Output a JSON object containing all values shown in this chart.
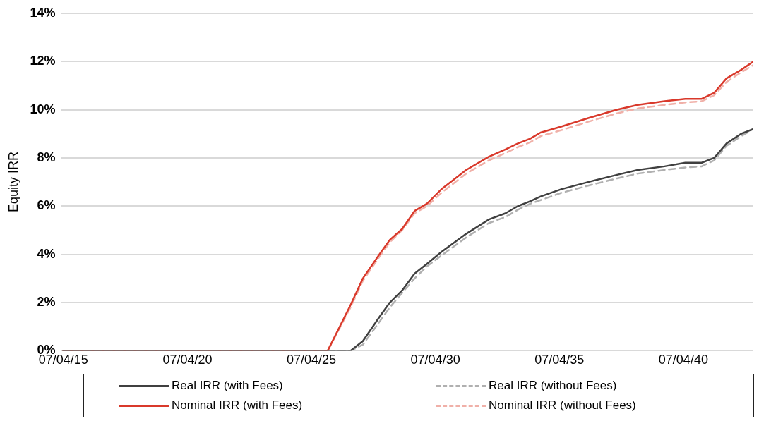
{
  "chart_data": {
    "type": "line",
    "ylabel": "Equity IRR",
    "grid": "y",
    "legend": "bottom",
    "marker": "none",
    "x": [
      "2015-07",
      "2026-03",
      "2027-02",
      "2027-08",
      "2028-04",
      "2028-09",
      "2029-03",
      "2029-09",
      "2030-03",
      "2030-10",
      "2031-10",
      "2032-09",
      "2033-05",
      "2033-11",
      "2034-05",
      "2034-10",
      "2035-08",
      "2036-09",
      "2037-11",
      "2038-09",
      "2039-10",
      "2040-08",
      "2041-04",
      "2041-10",
      "2042-04",
      "2042-11",
      "2043-05"
    ],
    "xlim": [
      "2015-06",
      "2043-05"
    ],
    "xticks": [
      {
        "value": "2015-07-04",
        "label": "07/04/15"
      },
      {
        "value": "2020-07-04",
        "label": "07/04/20"
      },
      {
        "value": "2025-07-04",
        "label": "07/04/25"
      },
      {
        "value": "2030-07-04",
        "label": "07/04/30"
      },
      {
        "value": "2035-07-04",
        "label": "07/04/35"
      },
      {
        "value": "2040-07-04",
        "label": "07/04/40"
      }
    ],
    "ylim": [
      0,
      14
    ],
    "yticks": [
      {
        "value": 0,
        "label": "0%"
      },
      {
        "value": 2,
        "label": "2%"
      },
      {
        "value": 4,
        "label": "4%"
      },
      {
        "value": 6,
        "label": "6%"
      },
      {
        "value": 8,
        "label": "8%"
      },
      {
        "value": 10,
        "label": "10%"
      },
      {
        "value": 12,
        "label": "12%"
      },
      {
        "value": 14,
        "label": "14%"
      }
    ],
    "series": [
      {
        "name": "Real IRR (with Fees)",
        "color": "#404040",
        "line_style": "solid",
        "values": [
          0,
          0,
          0,
          0.4,
          1.4,
          2.0,
          2.5,
          3.2,
          3.6,
          4.1,
          4.85,
          5.45,
          5.7,
          6.0,
          6.2,
          6.4,
          6.7,
          7.0,
          7.3,
          7.5,
          7.65,
          7.8,
          7.8,
          8.0,
          8.6,
          9.0,
          9.2
        ]
      },
      {
        "name": "Real IRR (without Fees)",
        "color": "#b0b0b0",
        "line_style": "dashed",
        "values": [
          0,
          0,
          0,
          0.25,
          1.2,
          1.8,
          2.4,
          3.0,
          3.5,
          3.95,
          4.7,
          5.3,
          5.55,
          5.85,
          6.1,
          6.25,
          6.55,
          6.85,
          7.15,
          7.35,
          7.5,
          7.6,
          7.65,
          7.9,
          8.5,
          8.9,
          9.2
        ]
      },
      {
        "name": "Nominal IRR (with Fees)",
        "color": "#d9392b",
        "line_style": "solid",
        "values": [
          0,
          0,
          1.9,
          3.0,
          4.0,
          4.6,
          5.05,
          5.8,
          6.1,
          6.7,
          7.5,
          8.05,
          8.35,
          8.6,
          8.8,
          9.05,
          9.3,
          9.65,
          10.0,
          10.2,
          10.35,
          10.45,
          10.45,
          10.7,
          11.3,
          11.65,
          12.0
        ]
      },
      {
        "name": "Nominal IRR (without Fees)",
        "color": "#f0b0a8",
        "line_style": "dashed",
        "values": [
          0,
          0,
          1.8,
          2.9,
          3.9,
          4.5,
          5.0,
          5.7,
          6.0,
          6.55,
          7.35,
          7.9,
          8.2,
          8.45,
          8.65,
          8.9,
          9.15,
          9.5,
          9.85,
          10.05,
          10.2,
          10.3,
          10.35,
          10.6,
          11.15,
          11.55,
          11.85
        ]
      }
    ]
  }
}
